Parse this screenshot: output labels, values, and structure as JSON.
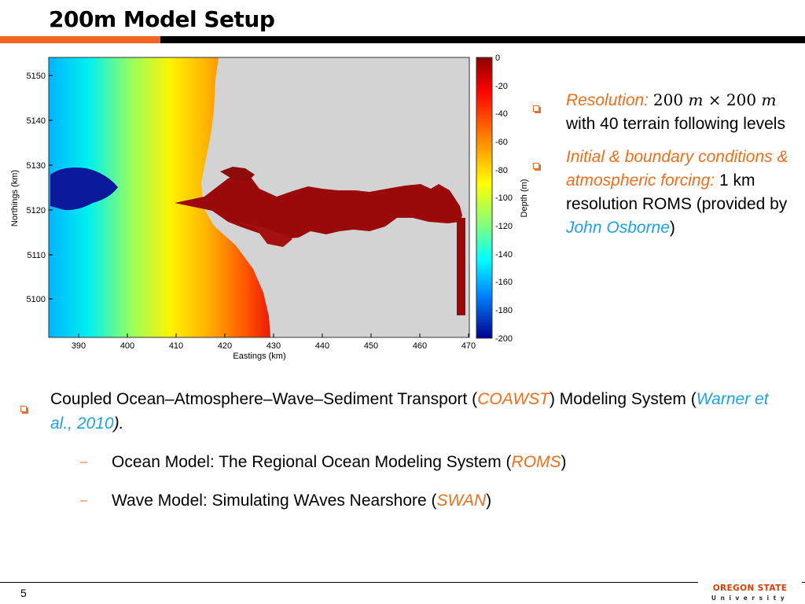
{
  "slide": {
    "title": "200m Model Setup",
    "page_number": "5"
  },
  "figure": {
    "ylabel": "Northings (km)",
    "xlabel": "Eastings (km)",
    "yticks": [
      "5150",
      "5140",
      "5130",
      "5120",
      "5110",
      "5100"
    ],
    "xticks": [
      "390",
      "400",
      "410",
      "420",
      "430",
      "440",
      "450",
      "460",
      "470"
    ],
    "colorbar_label": "Depth (m)",
    "colorbar_ticks": [
      "0",
      "-20",
      "-40",
      "-60",
      "-80",
      "-100",
      "-120",
      "-140",
      "-160",
      "-180",
      "-200"
    ]
  },
  "right_bullets": {
    "resolution_label": "Resolution:",
    "resolution_a": "200",
    "resolution_unit": "m",
    "resolution_times": "×",
    "resolution_b": "200",
    "resolution_rest": "with 40 terrain following levels",
    "ibc_label": "Initial & boundary conditions & atmospheric forcing:",
    "ibc_text": "1 km resolution ROMS (provided by",
    "ibc_name": "John Osborne",
    "ibc_close": ")"
  },
  "bottom_bullets": {
    "main_pre": "Coupled Ocean–Atmosphere–Wave–Sediment Transport (",
    "main_coawst": "COAWST",
    "main_mid": ") Modeling System (",
    "main_ref": "Warner et al., 2010",
    "main_end": ").",
    "dash": "–",
    "ocean_pre": "Ocean Model:  The Regional Ocean Modeling System (",
    "ocean_acr": "ROMS",
    "ocean_end": ")",
    "wave_pre": "Wave Model: Simulating WAves Nearshore (",
    "wave_acr": "SWAN",
    "wave_end": ")"
  },
  "logo": {
    "line1": "OREGON STATE",
    "line2": "University"
  },
  "colors": {
    "accent_orange": "#f26522",
    "text_orange": "#e8701e",
    "text_blue": "#1ea1e0"
  }
}
